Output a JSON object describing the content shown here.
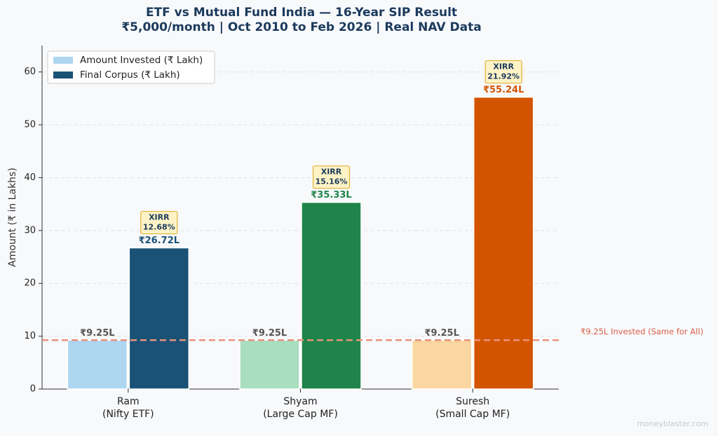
{
  "chart_data": {
    "type": "bar",
    "title": "ETF vs Mutual Fund India — 16-Year SIP Result",
    "subtitle": "₹5,000/month | Oct 2010 to Feb 2026 | Real NAV Data",
    "ylabel": "Amount (₹ in Lakhs)",
    "categories": [
      [
        "Ram",
        "(Nifty ETF)"
      ],
      [
        "Shyam",
        "(Large Cap MF)"
      ],
      [
        "Suresh",
        "(Small Cap MF)"
      ]
    ],
    "series": [
      {
        "name": "Amount Invested (₹ Lakh)",
        "color": "#aed6f1",
        "colors": [
          "#aed6f1",
          "#a9dfbf",
          "#fad7a0"
        ],
        "values": [
          9.25,
          9.25,
          9.25
        ],
        "value_labels": [
          "₹9.25L",
          "₹9.25L",
          "₹9.25L"
        ]
      },
      {
        "name": "Final Corpus (₹ Lakh)",
        "color": "#1a5276",
        "colors": [
          "#1a5276",
          "#1e8449",
          "#d35400"
        ],
        "values": [
          26.72,
          35.33,
          55.24
        ],
        "value_labels": [
          "₹26.72L",
          "₹35.33L",
          "₹55.24L"
        ]
      }
    ],
    "xirr_title": "XIRR",
    "xirr": [
      12.68,
      15.16,
      21.92
    ],
    "xirr_labels": [
      "12.68%",
      "15.16%",
      "21.92%"
    ],
    "reference_line": {
      "value": 9.25,
      "label": "₹9.25L Invested (Same for All)",
      "color": "#e8927c"
    },
    "ylim": [
      0,
      65
    ],
    "yticks": [
      0,
      10,
      20,
      30,
      40,
      50,
      60
    ],
    "grid": true,
    "legend": "upper left",
    "watermark": "moneyblaster.com"
  }
}
